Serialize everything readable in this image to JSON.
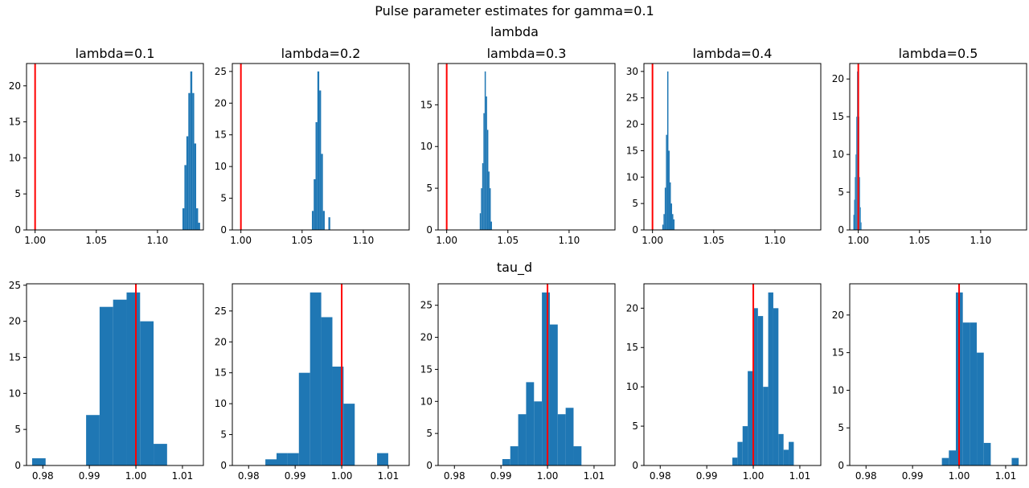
{
  "figure": {
    "title": "Pulse parameter estimates for gamma=0.1",
    "row_titles": [
      "lambda",
      "tau_d"
    ]
  },
  "colors": {
    "bar": "#1f77b4",
    "reference_line": "#ff0000",
    "axis": "#000000"
  },
  "chart_data": [
    {
      "type": "bar",
      "title": "lambda=0.1",
      "xlim": [
        0.993,
        1.1375
      ],
      "ylim": [
        0,
        23.1
      ],
      "xticks": [
        {
          "v": 1.0,
          "label": "1.00"
        },
        {
          "v": 1.05,
          "label": "1.05"
        },
        {
          "v": 1.1,
          "label": "1.10"
        }
      ],
      "yticks": [
        {
          "v": 0,
          "label": "0"
        },
        {
          "v": 5,
          "label": "5"
        },
        {
          "v": 10,
          "label": "10"
        },
        {
          "v": 15,
          "label": "15"
        },
        {
          "v": 20,
          "label": "20"
        }
      ],
      "bin_edges": [
        1.1204,
        1.122,
        1.1236,
        1.1252,
        1.1268,
        1.1284,
        1.13,
        1.1316,
        1.1332,
        1.1348
      ],
      "counts": [
        3,
        9,
        13,
        19,
        22,
        19,
        12,
        3,
        1
      ],
      "reference_x": 1.0
    },
    {
      "type": "bar",
      "title": "lambda=0.2",
      "xlim": [
        0.993,
        1.1375
      ],
      "ylim": [
        0,
        26.25
      ],
      "xticks": [
        {
          "v": 1.0,
          "label": "1.00"
        },
        {
          "v": 1.05,
          "label": "1.05"
        },
        {
          "v": 1.1,
          "label": "1.10"
        }
      ],
      "yticks": [
        {
          "v": 0,
          "label": "0"
        },
        {
          "v": 5,
          "label": "5"
        },
        {
          "v": 10,
          "label": "10"
        },
        {
          "v": 15,
          "label": "15"
        },
        {
          "v": 20,
          "label": "20"
        },
        {
          "v": 25,
          "label": "25"
        }
      ],
      "bin_edges": [
        1.058,
        1.0595,
        1.061,
        1.0625,
        1.064,
        1.0655,
        1.067,
        1.0685,
        1.07,
        1.0715,
        1.073
      ],
      "counts": [
        3,
        8,
        17,
        25,
        22,
        12,
        3,
        0,
        0,
        2
      ],
      "reference_x": 1.0
    },
    {
      "type": "bar",
      "title": "lambda=0.3",
      "xlim": [
        0.993,
        1.1375
      ],
      "ylim": [
        0,
        19.95
      ],
      "xticks": [
        {
          "v": 1.0,
          "label": "1.00"
        },
        {
          "v": 1.05,
          "label": "1.05"
        },
        {
          "v": 1.1,
          "label": "1.10"
        }
      ],
      "yticks": [
        {
          "v": 0,
          "label": "0"
        },
        {
          "v": 5,
          "label": "5"
        },
        {
          "v": 10,
          "label": "10"
        },
        {
          "v": 15,
          "label": "15"
        }
      ],
      "bin_edges": [
        1.027,
        1.028,
        1.029,
        1.03,
        1.031,
        1.032,
        1.033,
        1.034,
        1.035,
        1.036,
        1.037
      ],
      "counts": [
        2,
        5,
        8,
        14,
        19,
        16,
        12,
        7,
        5,
        1
      ],
      "reference_x": 1.0
    },
    {
      "type": "bar",
      "title": "lambda=0.4",
      "xlim": [
        0.993,
        1.1375
      ],
      "ylim": [
        0,
        31.5
      ],
      "xticks": [
        {
          "v": 1.0,
          "label": "1.00"
        },
        {
          "v": 1.05,
          "label": "1.05"
        },
        {
          "v": 1.1,
          "label": "1.10"
        }
      ],
      "yticks": [
        {
          "v": 0,
          "label": "0"
        },
        {
          "v": 5,
          "label": "5"
        },
        {
          "v": 10,
          "label": "10"
        },
        {
          "v": 15,
          "label": "15"
        },
        {
          "v": 20,
          "label": "20"
        },
        {
          "v": 25,
          "label": "25"
        },
        {
          "v": 30,
          "label": "30"
        }
      ],
      "bin_edges": [
        1.008,
        1.009,
        1.01,
        1.011,
        1.012,
        1.013,
        1.014,
        1.015,
        1.016,
        1.017,
        1.018
      ],
      "counts": [
        1,
        3,
        8,
        18,
        30,
        15,
        9,
        5,
        3,
        2
      ],
      "reference_x": 1.0
    },
    {
      "type": "bar",
      "title": "lambda=0.5",
      "xlim": [
        0.993,
        1.1375
      ],
      "ylim": [
        0,
        22.05
      ],
      "xticks": [
        {
          "v": 1.0,
          "label": "1.00"
        },
        {
          "v": 1.05,
          "label": "1.05"
        },
        {
          "v": 1.1,
          "label": "1.10"
        }
      ],
      "yticks": [
        {
          "v": 0,
          "label": "0"
        },
        {
          "v": 5,
          "label": "5"
        },
        {
          "v": 10,
          "label": "10"
        },
        {
          "v": 15,
          "label": "15"
        },
        {
          "v": 20,
          "label": "20"
        }
      ],
      "bin_edges": [
        0.996,
        0.9966,
        0.9972,
        0.9978,
        0.9984,
        0.999,
        0.9996,
        1.0002,
        1.0008,
        1.0014,
        1.002,
        1.0026
      ],
      "counts": [
        2,
        4,
        7,
        10,
        15,
        21,
        18,
        15,
        7,
        3,
        1
      ],
      "reference_x": 1.0
    },
    {
      "type": "bar",
      "title": "",
      "xlim": [
        0.9765,
        1.0145
      ],
      "ylim": [
        0,
        25.2
      ],
      "xticks": [
        {
          "v": 0.98,
          "label": "0.98"
        },
        {
          "v": 0.99,
          "label": "0.99"
        },
        {
          "v": 1.0,
          "label": "1.00"
        },
        {
          "v": 1.01,
          "label": "1.01"
        }
      ],
      "yticks": [
        {
          "v": 0,
          "label": "0"
        },
        {
          "v": 5,
          "label": "5"
        },
        {
          "v": 10,
          "label": "10"
        },
        {
          "v": 15,
          "label": "15"
        },
        {
          "v": 20,
          "label": "20"
        },
        {
          "v": 25,
          "label": "25"
        }
      ],
      "bin_edges": [
        0.9777,
        0.9806,
        0.9835,
        0.9864,
        0.9893,
        0.9922,
        0.9951,
        0.998,
        1.0009,
        1.0038,
        1.0067,
        1.0096
      ],
      "counts": [
        1,
        0,
        0,
        0,
        7,
        22,
        23,
        24,
        20,
        3,
        0
      ],
      "reference_x": 1.0
    },
    {
      "type": "bar",
      "title": "",
      "xlim": [
        0.9765,
        1.0145
      ],
      "ylim": [
        0,
        29.4
      ],
      "xticks": [
        {
          "v": 0.98,
          "label": "0.98"
        },
        {
          "v": 0.99,
          "label": "0.99"
        },
        {
          "v": 1.0,
          "label": "1.00"
        },
        {
          "v": 1.01,
          "label": "1.01"
        }
      ],
      "yticks": [
        {
          "v": 0,
          "label": "0"
        },
        {
          "v": 5,
          "label": "5"
        },
        {
          "v": 10,
          "label": "10"
        },
        {
          "v": 15,
          "label": "15"
        },
        {
          "v": 20,
          "label": "20"
        },
        {
          "v": 25,
          "label": "25"
        }
      ],
      "bin_edges": [
        0.9836,
        0.986,
        0.9884,
        0.9908,
        0.9932,
        0.9956,
        0.998,
        1.0004,
        1.0028,
        1.0052,
        1.0076,
        1.01
      ],
      "counts": [
        1,
        2,
        2,
        15,
        28,
        24,
        16,
        10,
        0,
        0,
        2
      ],
      "reference_x": 1.0
    },
    {
      "type": "bar",
      "title": "",
      "xlim": [
        0.9765,
        1.0145
      ],
      "ylim": [
        0,
        28.35
      ],
      "xticks": [
        {
          "v": 0.98,
          "label": "0.98"
        },
        {
          "v": 0.99,
          "label": "0.99"
        },
        {
          "v": 1.0,
          "label": "1.00"
        },
        {
          "v": 1.01,
          "label": "1.01"
        }
      ],
      "yticks": [
        {
          "v": 0,
          "label": "0"
        },
        {
          "v": 5,
          "label": "5"
        },
        {
          "v": 10,
          "label": "10"
        },
        {
          "v": 15,
          "label": "15"
        },
        {
          "v": 20,
          "label": "20"
        },
        {
          "v": 25,
          "label": "25"
        }
      ],
      "bin_edges": [
        0.9903,
        0.992,
        0.9937,
        0.9954,
        0.9971,
        0.9988,
        1.0005,
        1.0022,
        1.0039,
        1.0056,
        1.0073
      ],
      "counts": [
        1,
        3,
        8,
        13,
        10,
        27,
        22,
        8,
        9,
        3
      ],
      "reference_x": 1.0
    },
    {
      "type": "bar",
      "title": "",
      "xlim": [
        0.9765,
        1.0145
      ],
      "ylim": [
        0,
        23.1
      ],
      "xticks": [
        {
          "v": 0.98,
          "label": "0.98"
        },
        {
          "v": 0.99,
          "label": "0.99"
        },
        {
          "v": 1.0,
          "label": "1.00"
        },
        {
          "v": 1.01,
          "label": "1.01"
        }
      ],
      "yticks": [
        {
          "v": 0,
          "label": "0"
        },
        {
          "v": 5,
          "label": "5"
        },
        {
          "v": 10,
          "label": "10"
        },
        {
          "v": 15,
          "label": "15"
        },
        {
          "v": 20,
          "label": "20"
        }
      ],
      "bin_edges": [
        0.9955,
        0.9966,
        0.9977,
        0.9988,
        0.9999,
        1.001,
        1.0021,
        1.0032,
        1.0043,
        1.0054,
        1.0065,
        1.0076,
        1.0087,
        1.0098
      ],
      "counts": [
        1,
        3,
        5,
        12,
        20,
        19,
        10,
        22,
        20,
        4,
        2,
        3,
        0
      ],
      "reference_x": 1.0
    },
    {
      "type": "bar",
      "title": "",
      "xlim": [
        0.9765,
        1.0145
      ],
      "ylim": [
        0,
        24.15
      ],
      "xticks": [
        {
          "v": 0.98,
          "label": "0.98"
        },
        {
          "v": 0.99,
          "label": "0.99"
        },
        {
          "v": 1.0,
          "label": "1.00"
        },
        {
          "v": 1.01,
          "label": "1.01"
        }
      ],
      "yticks": [
        {
          "v": 0,
          "label": "0"
        },
        {
          "v": 5,
          "label": "5"
        },
        {
          "v": 10,
          "label": "10"
        },
        {
          "v": 15,
          "label": "15"
        },
        {
          "v": 20,
          "label": "20"
        }
      ],
      "bin_edges": [
        0.9963,
        0.9978,
        0.9993,
        1.0008,
        1.0023,
        1.0038,
        1.0053,
        1.0068,
        1.0083,
        1.0098,
        1.0113,
        1.0128
      ],
      "counts": [
        1,
        2,
        23,
        19,
        19,
        15,
        3,
        0,
        0,
        0,
        1
      ],
      "reference_x": 1.0
    }
  ]
}
